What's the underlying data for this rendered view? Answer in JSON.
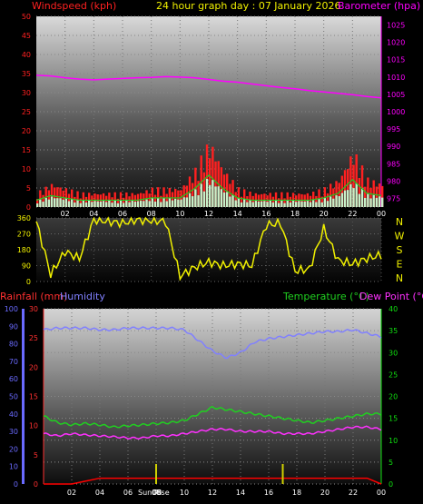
{
  "header": {
    "left": "Windspeed (kph)",
    "center": "24 hour graph day : 07 January 2026",
    "right": "Barometer (hpa)"
  },
  "colors": {
    "wind": "#ff2020",
    "barometer": "#ff00ff",
    "gust_green": "#22cc22",
    "direction": "#f0f000",
    "humidity": "#8080ff",
    "temperature": "#20d020",
    "dewpoint": "#ff30ff",
    "rain": "#ff0000",
    "sun": "#d0d000",
    "rain_axis": "#ff3030",
    "hum_axis": "#6a6aff",
    "temp_axis": "#10e010"
  },
  "time_labels": [
    "02",
    "04",
    "06",
    "08",
    "10",
    "12",
    "14",
    "16",
    "18",
    "20",
    "22",
    "00"
  ],
  "chart_data": [
    {
      "type": "line",
      "title": "24 hour graph day : 07 January 2026",
      "x": [
        0,
        1,
        2,
        3,
        4,
        5,
        6,
        7,
        8,
        9,
        10,
        11,
        12,
        13,
        14,
        15,
        16,
        17,
        18,
        19,
        20,
        21,
        22,
        23,
        24
      ],
      "series": [
        {
          "name": "Windspeed (kph)",
          "axis": "left",
          "values": [
            3,
            5,
            4,
            3,
            3,
            3,
            3,
            3,
            4,
            4,
            4,
            8,
            14,
            8,
            4,
            3,
            3,
            3,
            3,
            3,
            4,
            6,
            12,
            6,
            5
          ]
        },
        {
          "name": "Barometer (hpa)",
          "axis": "right",
          "values": [
            1010.5,
            1010.3,
            1009.8,
            1009.4,
            1009.2,
            1009.4,
            1009.6,
            1009.8,
            1009.9,
            1010.1,
            1010.0,
            1009.8,
            1009.3,
            1008.8,
            1008.5,
            1008.0,
            1007.5,
            1007.0,
            1006.6,
            1006.1,
            1005.7,
            1005.3,
            1004.9,
            1004.4,
            1004.0
          ]
        }
      ],
      "y_left": {
        "label": "Windspeed (kph)",
        "range": [
          0,
          50
        ],
        "ticks": [
          "0",
          "5",
          "10",
          "15",
          "20",
          "25",
          "30",
          "35",
          "40",
          "45",
          "50"
        ]
      },
      "y_right": {
        "label": "Barometer (hpa)",
        "range": [
          972.5,
          1027.5
        ],
        "ticks": [
          "975",
          "980",
          "985",
          "990",
          "995",
          "1000",
          "1005",
          "1010",
          "1015",
          "1020",
          "1025"
        ]
      }
    },
    {
      "type": "scatter",
      "title": "",
      "y_ticks": [
        "360",
        "270",
        "180",
        "90",
        "0"
      ],
      "direction_labels": [
        "N",
        "W",
        "S",
        "E",
        "N"
      ],
      "x": [
        0,
        1,
        2,
        3,
        4,
        5,
        6,
        7,
        8,
        9,
        10,
        11,
        12,
        13,
        14,
        15,
        16,
        17,
        18,
        19,
        20,
        21,
        22,
        23,
        24
      ],
      "values": [
        340,
        40,
        170,
        130,
        350,
        340,
        330,
        350,
        345,
        340,
        30,
        80,
        110,
        90,
        100,
        90,
        320,
        330,
        60,
        70,
        300,
        120,
        100,
        130,
        150
      ]
    },
    {
      "type": "line",
      "title": "",
      "x": [
        0,
        1,
        2,
        3,
        4,
        5,
        6,
        7,
        8,
        9,
        10,
        11,
        12,
        13,
        14,
        15,
        16,
        17,
        18,
        19,
        20,
        21,
        22,
        23,
        24
      ],
      "series": [
        {
          "name": "Humidity",
          "axis": "humidity",
          "values": [
            88,
            89,
            89,
            89,
            88,
            88,
            89,
            89,
            89,
            89,
            88,
            82,
            76,
            72,
            75,
            81,
            83,
            84,
            85,
            86,
            87,
            87,
            88,
            86,
            84
          ]
        },
        {
          "name": "Temperature (°C)",
          "axis": "temperature",
          "values": [
            15.5,
            14,
            13.5,
            13.8,
            13.5,
            13,
            13.3,
            13.5,
            13.8,
            14,
            14.5,
            16,
            17.5,
            17,
            16.5,
            16,
            15.5,
            15,
            14.5,
            14,
            14.5,
            15,
            15.5,
            16,
            16
          ]
        },
        {
          "name": "Dew Point (°C)",
          "axis": "temperature",
          "values": [
            11.5,
            11,
            11.5,
            11.2,
            11,
            10.8,
            10.5,
            10.5,
            11,
            11,
            11.5,
            12,
            12.5,
            12.5,
            12,
            12,
            12,
            11.5,
            11.5,
            11.5,
            12,
            12.5,
            13,
            13,
            12.5
          ]
        },
        {
          "name": "Rainfall (mm)",
          "axis": "rainfall",
          "values": [
            0,
            0,
            0,
            0.5,
            1,
            1,
            1,
            1,
            1,
            1,
            1,
            1,
            1,
            1,
            1,
            1,
            1,
            1,
            1,
            1,
            1,
            1,
            1,
            1,
            0
          ]
        }
      ],
      "y_rain": {
        "label": "Rainfall (mm)",
        "range": [
          0,
          30
        ],
        "ticks": [
          "0",
          "5",
          "10",
          "15",
          "20",
          "25",
          "30"
        ]
      },
      "y_humidity": {
        "label": "Humidity",
        "range": [
          0,
          100
        ],
        "ticks": [
          "0",
          "10",
          "20",
          "30",
          "40",
          "50",
          "60",
          "70",
          "80",
          "90",
          "100"
        ]
      },
      "y_temp": {
        "label": "Temperature (°C)",
        "range": [
          0,
          40
        ],
        "ticks": [
          "0",
          "5",
          "10",
          "15",
          "20",
          "25",
          "30",
          "35",
          "40"
        ]
      },
      "sun_labels": [
        "Sun Rise",
        "08"
      ]
    }
  ],
  "panels": {
    "bottom": {
      "rain_label": "Rainfall (mm)",
      "hum_label": "Humidity",
      "temp_label": "Temperature (°C)",
      "dew_label": "Dew Point (°C)"
    }
  }
}
